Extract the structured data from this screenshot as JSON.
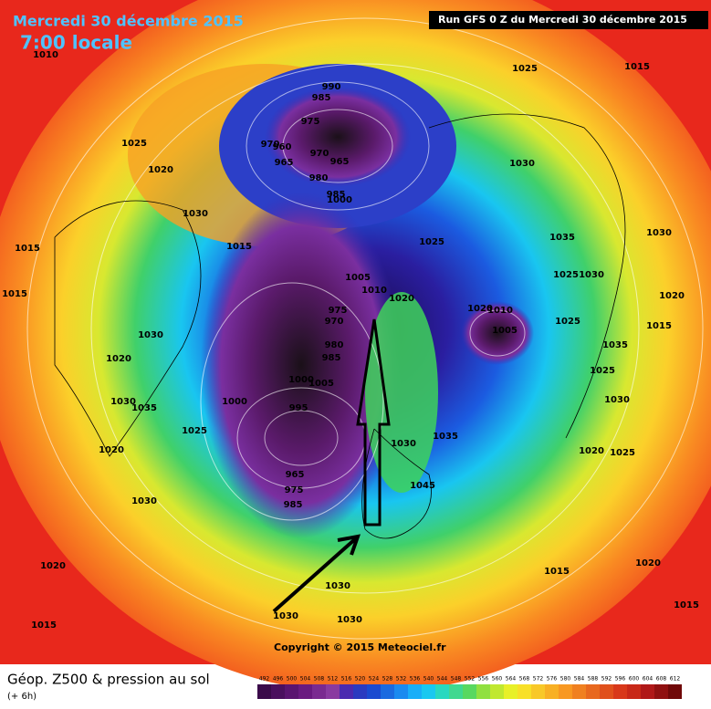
{
  "header": {
    "date": "Mercredi 30 décembre 2015",
    "time": "7:00 locale",
    "run": "Run GFS 0 Z du Mercredi 30 décembre 2015"
  },
  "copyright": "Copyright © 2015 Meteociel.fr",
  "footer": {
    "title": "Géop. Z500 & pression au sol",
    "step": "(+ 6h)"
  },
  "scale": [
    492,
    496,
    500,
    504,
    508,
    512,
    516,
    520,
    524,
    528,
    532,
    536,
    540,
    544,
    548,
    552,
    556,
    560,
    564,
    568,
    572,
    576,
    580,
    584,
    588,
    592,
    596,
    600,
    604,
    608,
    612
  ],
  "isobar_labels": [
    "1010",
    "1025",
    "1015",
    "990",
    "985",
    "975",
    "970",
    "960",
    "970",
    "965",
    "965",
    "980",
    "1025",
    "1020",
    "1030",
    "985",
    "1000",
    "1030",
    "1035",
    "1030",
    "1015",
    "1015",
    "1025",
    "1005",
    "1010",
    "1020",
    "1015",
    "1025",
    "1030",
    "1020",
    "975",
    "970",
    "1020",
    "1010",
    "1005",
    "1025",
    "1015",
    "1030",
    "980",
    "985",
    "1035",
    "1020",
    "1025",
    "1000",
    "1005",
    "1030",
    "1000",
    "995",
    "1030",
    "1035",
    "1025",
    "1035",
    "1030",
    "1020",
    "1020",
    "1025",
    "1045",
    "965",
    "975",
    "985",
    "1030",
    "1020",
    "1015",
    "1020",
    "1030",
    "1015",
    "1030",
    "1030",
    "1015"
  ]
}
